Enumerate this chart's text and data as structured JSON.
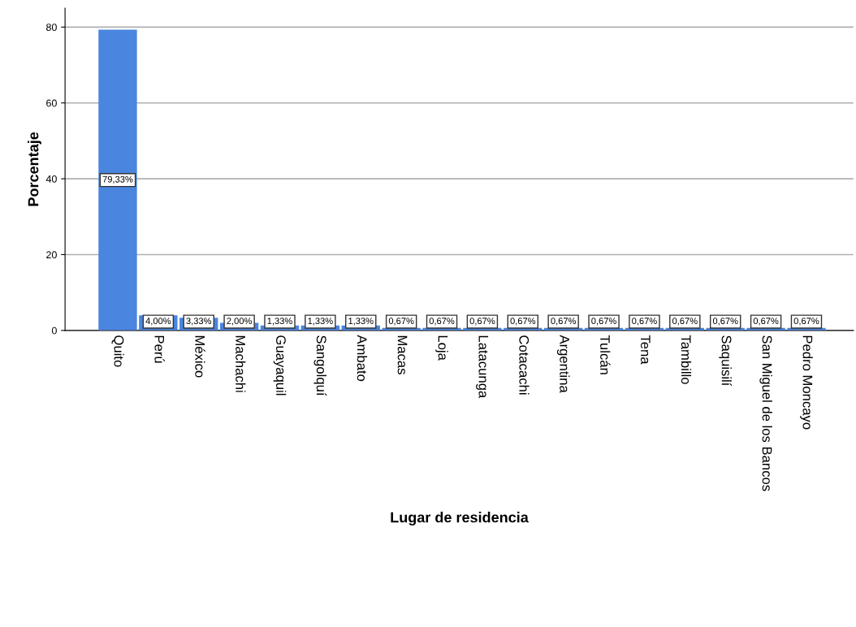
{
  "chart_data": {
    "type": "bar",
    "xlabel": "Lugar de residencia",
    "ylabel": "Porcentaje",
    "categories": [
      "Quito",
      "Perú",
      "México",
      "Machachi",
      "Guayaquil",
      "Sangolquí",
      "Ambato",
      "Macas",
      "Loja",
      "Latacunga",
      "Cotacachi",
      "Argentina",
      "Tulcán",
      "Tena",
      "Tambillo",
      "Saquisilí",
      "San Miguel de los Bancos",
      "Pedro Moncayo"
    ],
    "values": [
      79.33,
      4.0,
      3.33,
      2.0,
      1.33,
      1.33,
      1.33,
      0.67,
      0.67,
      0.67,
      0.67,
      0.67,
      0.67,
      0.67,
      0.67,
      0.67,
      0.67,
      0.67
    ],
    "value_labels": [
      "79,33%",
      "4,00%",
      "3,33%",
      "2,00%",
      "1,33%",
      "1,33%",
      "1,33%",
      "0,67%",
      "0,67%",
      "0,67%",
      "0,67%",
      "0,67%",
      "0,67%",
      "0,67%",
      "0,67%",
      "0,67%",
      "0,67%",
      "0,67%"
    ],
    "color": "#4a86e0",
    "ylim": [
      0,
      85
    ],
    "yticks": [
      0,
      20,
      40,
      60,
      80
    ],
    "grid": "y"
  }
}
